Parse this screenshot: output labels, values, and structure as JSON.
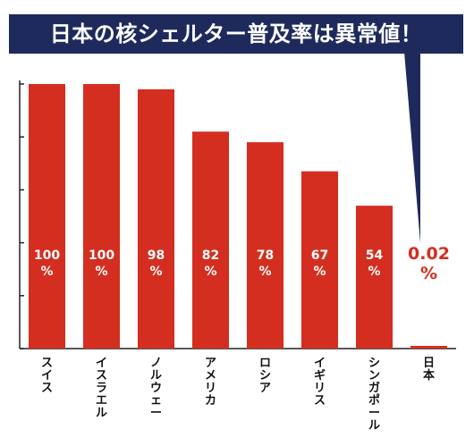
{
  "title": "日本の核シェルター普及率は異常値！",
  "chart_data": {
    "type": "bar",
    "categories": [
      "スイス",
      "イスラエル",
      "ノルウェー",
      "アメリカ",
      "ロシア",
      "イギリス",
      "シンガポール",
      "日本"
    ],
    "values": [
      100,
      100,
      98,
      82,
      78,
      67,
      54,
      0.02
    ],
    "value_labels": [
      [
        "100",
        "%"
      ],
      [
        "100",
        "%"
      ],
      [
        "98",
        "%"
      ],
      [
        "82",
        "%"
      ],
      [
        "78",
        "%"
      ],
      [
        "67",
        "%"
      ],
      [
        "54",
        "%"
      ],
      [
        "0.02",
        "%"
      ]
    ],
    "ylim": [
      0,
      100
    ],
    "xlabel": "",
    "ylabel": "",
    "grid": false,
    "legend": "none",
    "colors": {
      "bar": "#d42e20",
      "bar_label": "#ffffff",
      "highlight_label": "#d42e20",
      "axis": "#222222",
      "banner": "#1f2a5c",
      "banner_text": "#ffffff"
    }
  }
}
